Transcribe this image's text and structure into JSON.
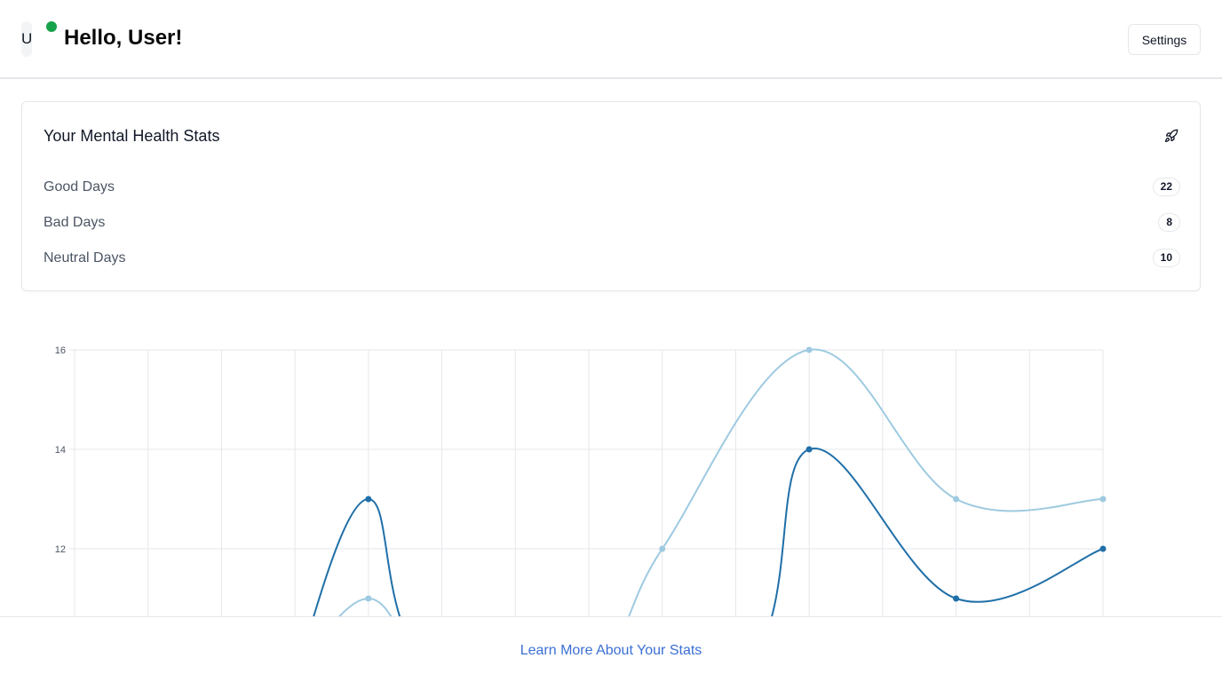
{
  "header": {
    "avatar_letter": "U",
    "greeting": "Hello, User!",
    "settings_label": "Settings"
  },
  "stats": {
    "title": "Your Mental Health Stats",
    "icon": "rocket-icon",
    "items": [
      {
        "label": "Good Days",
        "value": "22"
      },
      {
        "label": "Bad Days",
        "value": "8"
      },
      {
        "label": "Neutral Days",
        "value": "10"
      }
    ]
  },
  "footer": {
    "link_label": "Learn More About Your Stats"
  },
  "colors": {
    "status_online": "#16a34a",
    "series_dark": "#1f6fa8",
    "series_light": "#9ecae1",
    "link": "#3b6fd4"
  },
  "chart_data": {
    "type": "line",
    "x_count": 15,
    "y_ticks": [
      12,
      14,
      16
    ],
    "series": [
      {
        "color": "#1f6fa8",
        "points": [
          [
            4,
            13
          ],
          [
            10,
            14
          ],
          [
            12,
            11
          ],
          [
            14,
            12
          ]
        ]
      },
      {
        "color": "#9ecae1",
        "points": [
          [
            4,
            11
          ],
          [
            8,
            12
          ],
          [
            10,
            16
          ],
          [
            12,
            13
          ],
          [
            14,
            13
          ]
        ]
      }
    ]
  }
}
